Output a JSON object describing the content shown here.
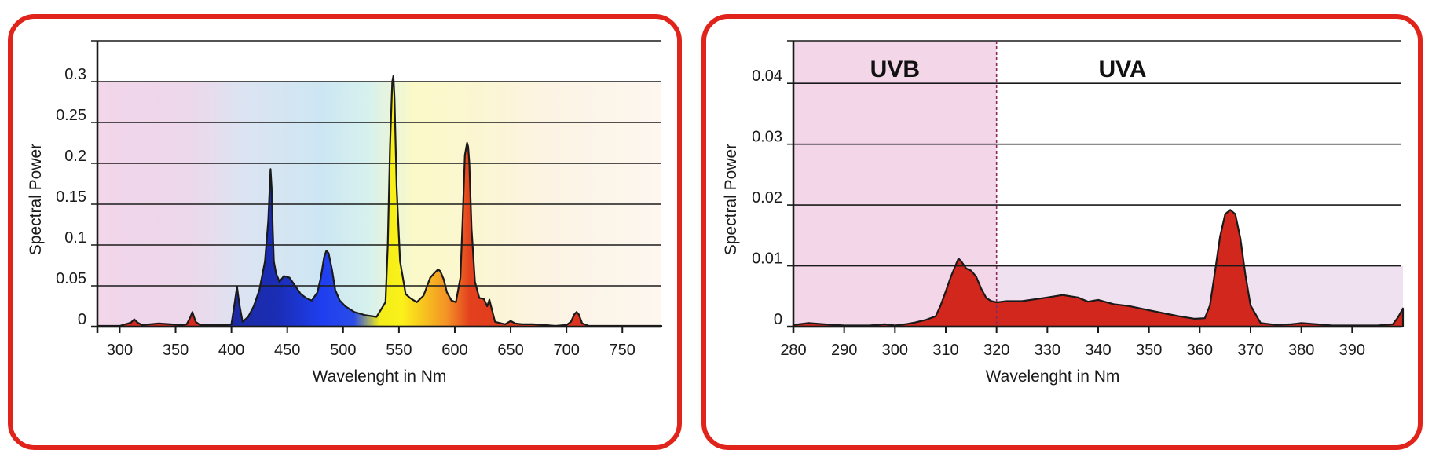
{
  "chart_data": [
    {
      "type": "area",
      "xlabel": "Wavelenght in Nm",
      "ylabel": "Spectral Power",
      "xlim": [
        280,
        785
      ],
      "ylim": [
        0,
        0.35
      ],
      "x_ticks": [
        "300",
        "350",
        "400",
        "450",
        "500",
        "550",
        "600",
        "650",
        "700",
        "750"
      ],
      "y_ticks": [
        "0",
        "0.05",
        "0.1",
        "0.15",
        "0.2",
        "0.25",
        "0.3"
      ],
      "grid": true,
      "series": [
        {
          "x": [
            280,
            300,
            310,
            313,
            316,
            320,
            335,
            345,
            355,
            360,
            363,
            365,
            368,
            372,
            395,
            400,
            403,
            405,
            407,
            410,
            415,
            420,
            425,
            430,
            433,
            435,
            436,
            437,
            438,
            440,
            443,
            447,
            452,
            457,
            462,
            467,
            472,
            477,
            480,
            483,
            485,
            487,
            490,
            493,
            497,
            502,
            510,
            520,
            530,
            538,
            540,
            542,
            544,
            545,
            546,
            548,
            551,
            556,
            560,
            566,
            572,
            578,
            582,
            585,
            587,
            590,
            593,
            597,
            601,
            605,
            607,
            609,
            611,
            612,
            613,
            615,
            618,
            622,
            626,
            629,
            631,
            633,
            636,
            645,
            650,
            654,
            660,
            670,
            680,
            690,
            700,
            704,
            707,
            709,
            711,
            714,
            720,
            750,
            785
          ],
          "y": [
            0.001,
            0.001,
            0.005,
            0.009,
            0.005,
            0.002,
            0.004,
            0.003,
            0.002,
            0.003,
            0.011,
            0.018,
            0.006,
            0.002,
            0.002,
            0.003,
            0.03,
            0.049,
            0.028,
            0.006,
            0.012,
            0.025,
            0.045,
            0.08,
            0.13,
            0.193,
            0.17,
            0.12,
            0.08,
            0.065,
            0.055,
            0.062,
            0.06,
            0.05,
            0.04,
            0.035,
            0.032,
            0.042,
            0.06,
            0.085,
            0.093,
            0.09,
            0.07,
            0.045,
            0.032,
            0.025,
            0.018,
            0.014,
            0.012,
            0.03,
            0.1,
            0.22,
            0.3,
            0.307,
            0.28,
            0.17,
            0.08,
            0.04,
            0.035,
            0.03,
            0.038,
            0.06,
            0.066,
            0.07,
            0.068,
            0.058,
            0.042,
            0.032,
            0.03,
            0.06,
            0.13,
            0.21,
            0.225,
            0.22,
            0.2,
            0.12,
            0.055,
            0.035,
            0.034,
            0.025,
            0.033,
            0.022,
            0.006,
            0.003,
            0.007,
            0.004,
            0.003,
            0.003,
            0.002,
            0.001,
            0.002,
            0.006,
            0.015,
            0.018,
            0.015,
            0.004,
            0.001,
            0.001,
            0.001
          ]
        }
      ]
    },
    {
      "type": "area",
      "xlabel": "Wavelenght in Nm",
      "ylabel": "Spectral Power",
      "xlim": [
        280,
        400
      ],
      "ylim": [
        0,
        0.047
      ],
      "x_ticks": [
        "280",
        "290",
        "300",
        "310",
        "320",
        "330",
        "340",
        "350",
        "360",
        "370",
        "380",
        "390"
      ],
      "y_ticks": [
        "0",
        "0.01",
        "0.02",
        "0.03",
        "0.04"
      ],
      "grid": true,
      "regions": [
        {
          "label": "UVB",
          "from": 280,
          "to": 320
        },
        {
          "label": "UVA",
          "from": 320,
          "to": 400
        }
      ],
      "series": [
        {
          "x": [
            280,
            283,
            286,
            290,
            295,
            298,
            300,
            302,
            304,
            306,
            308,
            309,
            310,
            311,
            312,
            312.5,
            313,
            314,
            315,
            316,
            317,
            318,
            319,
            320,
            322,
            325,
            330,
            333,
            336,
            338,
            340,
            343,
            346,
            350,
            353,
            356,
            359,
            361,
            362,
            363,
            364,
            365,
            366,
            367,
            368,
            369,
            370,
            372,
            375,
            378,
            380,
            383,
            386,
            390,
            395,
            398,
            399,
            400
          ],
          "y": [
            0.0003,
            0.0006,
            0.0004,
            0.0002,
            0.0002,
            0.0004,
            0.0002,
            0.0004,
            0.0007,
            0.0011,
            0.0017,
            0.0035,
            0.0058,
            0.0082,
            0.0102,
            0.0112,
            0.0108,
            0.0096,
            0.0092,
            0.0082,
            0.0062,
            0.0047,
            0.0042,
            0.004,
            0.0042,
            0.0042,
            0.0048,
            0.0052,
            0.0048,
            0.0041,
            0.0044,
            0.0037,
            0.0034,
            0.0027,
            0.0022,
            0.0017,
            0.0013,
            0.0014,
            0.0035,
            0.009,
            0.0148,
            0.0185,
            0.0192,
            0.0185,
            0.0145,
            0.0085,
            0.0035,
            0.0006,
            0.0003,
            0.0004,
            0.0006,
            0.0004,
            0.0002,
            0.0002,
            0.0002,
            0.0004,
            0.0015,
            0.003
          ]
        }
      ]
    }
  ]
}
